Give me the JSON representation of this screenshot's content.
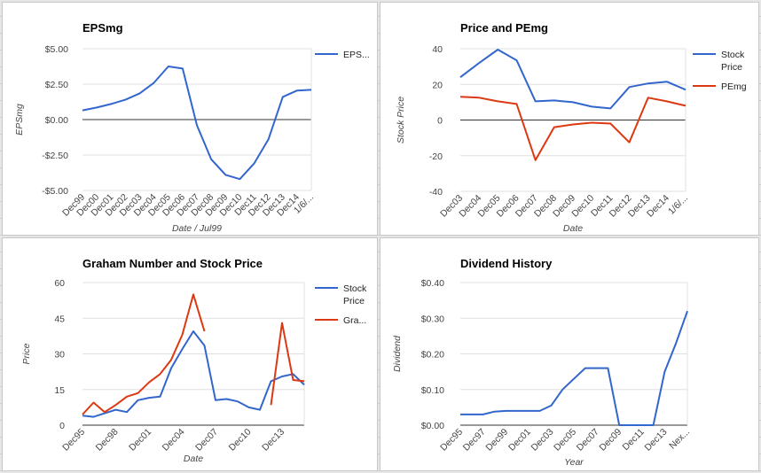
{
  "colors": {
    "blue": "#3366cc",
    "red": "#dc3912",
    "grid": "#e0e0e0",
    "axis": "#333333",
    "text": "#444444"
  },
  "chart_data": [
    {
      "type": "line",
      "title": "EPSmg",
      "xlabel": "Date / Jul99",
      "ylabel": "EPSmg",
      "categories": [
        "Dec99",
        "Dec00",
        "Dec01",
        "Dec02",
        "Dec03",
        "Dec04",
        "Dec05",
        "Dec06",
        "Dec07",
        "Dec08",
        "Dec09",
        "Dec10",
        "Dec11",
        "Dec12",
        "Dec13",
        "Dec14",
        "1/6/..."
      ],
      "x_tick_labels": [
        "Dec99",
        "Dec00",
        "Dec01",
        "Dec02",
        "Dec03",
        "Dec04",
        "Dec05",
        "Dec06",
        "Dec07",
        "Dec08",
        "Dec09",
        "Dec10",
        "Dec11",
        "Dec12",
        "Dec13",
        "Dec14",
        "1/6/..."
      ],
      "y_ticks": [
        -5,
        -2.5,
        0,
        2.5,
        5
      ],
      "y_tick_labels": [
        "-$5.00",
        "-$2.50",
        "$0.00",
        "$2.50",
        "$5.00"
      ],
      "ylim": [
        -5,
        5
      ],
      "series": [
        {
          "name": "EPS...",
          "color": "#3366cc",
          "values": [
            0.65,
            0.85,
            1.1,
            1.4,
            1.85,
            2.6,
            3.75,
            3.6,
            -0.4,
            -2.8,
            -3.9,
            -4.2,
            -3.1,
            -1.4,
            1.6,
            2.05,
            2.1
          ]
        }
      ],
      "legend": "right"
    },
    {
      "type": "line",
      "title": "Price and PEmg",
      "xlabel": "Date",
      "ylabel": "Stock Price",
      "categories": [
        "Dec03",
        "Dec04",
        "Dec05",
        "Dec06",
        "Dec07",
        "Dec08",
        "Dec09",
        "Dec10",
        "Dec11",
        "Dec12",
        "Dec13",
        "Dec14",
        "1/6/..."
      ],
      "x_tick_labels": [
        "Dec03",
        "Dec04",
        "Dec05",
        "Dec06",
        "Dec07",
        "Dec08",
        "Dec09",
        "Dec10",
        "Dec11",
        "Dec12",
        "Dec13",
        "Dec14",
        "1/6/..."
      ],
      "y_ticks": [
        -40,
        -20,
        0,
        20,
        40
      ],
      "y_tick_labels": [
        "-40",
        "-20",
        "0",
        "20",
        "40"
      ],
      "ylim": [
        -40,
        40
      ],
      "series": [
        {
          "name": "Stock Price",
          "color": "#3366cc",
          "values": [
            24,
            32,
            39.5,
            33.5,
            10.5,
            11,
            10,
            7.5,
            6.5,
            18.5,
            20.5,
            21.5,
            17
          ]
        },
        {
          "name": "PEmg",
          "color": "#dc3912",
          "values": [
            13,
            12.5,
            10.5,
            9,
            -22.5,
            -4,
            -2.5,
            -1.5,
            -2,
            -12.5,
            12.5,
            10.5,
            8
          ]
        }
      ],
      "legend": "right"
    },
    {
      "type": "line",
      "title": "Graham Number and Stock Price",
      "xlabel": "Date",
      "ylabel": "Price",
      "categories": [
        "Dec95",
        "Dec96",
        "Dec97",
        "Dec98",
        "Dec99",
        "Dec00",
        "Dec01",
        "Dec02",
        "Dec03",
        "Dec04",
        "Dec05",
        "Dec06",
        "Dec07",
        "Dec08",
        "Dec09",
        "Dec10",
        "Dec11",
        "Dec12",
        "Dec13",
        "Dec14",
        "1/6/..."
      ],
      "x_tick_labels": [
        "Dec95",
        "",
        "",
        "Dec98",
        "",
        "",
        "Dec01",
        "",
        "",
        "Dec04",
        "",
        "",
        "Dec07",
        "",
        "",
        "Dec10",
        "",
        "",
        "Dec13",
        "",
        ""
      ],
      "y_ticks": [
        0,
        15,
        30,
        45,
        60
      ],
      "y_tick_labels": [
        "0",
        "15",
        "30",
        "45",
        "60"
      ],
      "ylim": [
        0,
        60
      ],
      "series": [
        {
          "name": "Stock Price",
          "color": "#3366cc",
          "values": [
            4,
            3.5,
            5,
            6.5,
            5.5,
            10.5,
            11.5,
            12,
            24,
            32,
            39.5,
            33.5,
            10.5,
            11,
            10,
            7.5,
            6.5,
            18.5,
            20.5,
            21.5,
            17
          ]
        },
        {
          "name": "Gra...",
          "color": "#dc3912",
          "values": [
            4.5,
            9.5,
            5.5,
            8.5,
            12,
            13.5,
            18,
            21.5,
            27.5,
            38,
            55,
            39.5,
            null,
            null,
            null,
            null,
            null,
            8.5,
            43,
            19,
            18.5
          ]
        }
      ],
      "legend": "right"
    },
    {
      "type": "line",
      "title": "Dividend History",
      "xlabel": "Year",
      "ylabel": "Dividend",
      "categories": [
        "Dec95",
        "Dec96",
        "Dec97",
        "Dec98",
        "Dec99",
        "Dec00",
        "Dec01",
        "Dec02",
        "Dec03",
        "Dec04",
        "Dec05",
        "Dec06",
        "Dec07",
        "Dec08",
        "Dec09",
        "Dec10",
        "Dec11",
        "Dec12",
        "Dec13",
        "Dec14",
        "Nex..."
      ],
      "x_tick_labels": [
        "Dec95",
        "",
        "Dec97",
        "",
        "Dec99",
        "",
        "Dec01",
        "",
        "Dec03",
        "",
        "Dec05",
        "",
        "Dec07",
        "",
        "Dec09",
        "",
        "Dec11",
        "",
        "Dec13",
        "",
        "Nex..."
      ],
      "y_ticks": [
        0,
        0.1,
        0.2,
        0.3,
        0.4
      ],
      "y_tick_labels": [
        "$0.00",
        "$0.10",
        "$0.20",
        "$0.30",
        "$0.40"
      ],
      "ylim": [
        0,
        0.4
      ],
      "series": [
        {
          "name": "",
          "color": "#3366cc",
          "values": [
            0.03,
            0.03,
            0.03,
            0.038,
            0.04,
            0.04,
            0.04,
            0.04,
            0.055,
            0.1,
            0.13,
            0.16,
            0.16,
            0.16,
            0,
            0,
            0,
            0,
            0.15,
            0.23,
            0.32
          ]
        }
      ],
      "legend": "none"
    }
  ]
}
